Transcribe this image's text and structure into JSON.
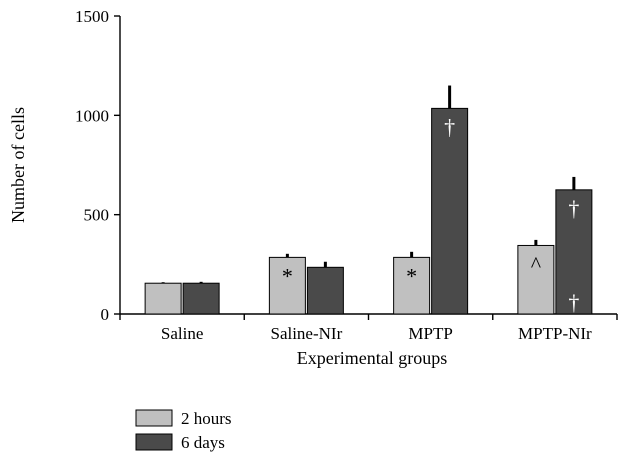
{
  "chart_data": {
    "type": "bar",
    "xlabel": "Experimental groups",
    "ylabel": "Number of cells",
    "ylim": [
      0,
      1500
    ],
    "yticks": [
      "0",
      "500",
      "1000",
      "1500"
    ],
    "categories": [
      "Saline",
      "Saline-NIr",
      "MPTP",
      "MPTP-NIr"
    ],
    "grid": false,
    "legend_position": "bottom-left",
    "series": [
      {
        "name": "2 hours",
        "color": "#c0c0c0",
        "values": [
          155,
          285,
          285,
          345
        ],
        "errors": [
          5,
          18,
          28,
          28
        ],
        "annotations": [
          "",
          "*",
          "*",
          "^"
        ]
      },
      {
        "name": "6 days",
        "color": "#4a4a4a",
        "values": [
          155,
          235,
          1035,
          625
        ],
        "errors": [
          7,
          28,
          115,
          65
        ],
        "annotations": [
          "",
          "",
          "†",
          "†"
        ]
      }
    ],
    "extra_annotations": [
      {
        "series": 1,
        "category": 3,
        "text": "†",
        "position": "base"
      }
    ]
  }
}
